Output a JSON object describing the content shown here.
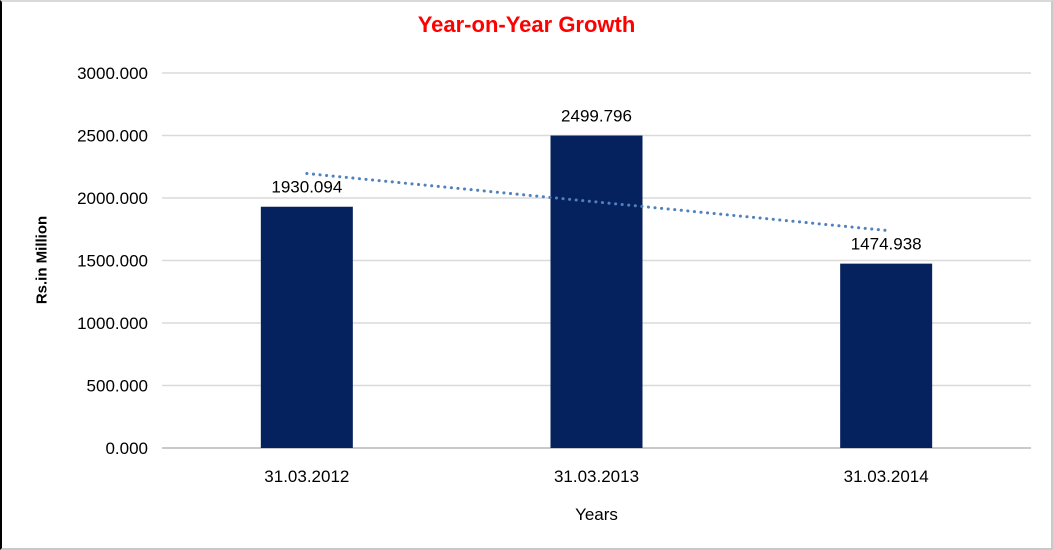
{
  "chart_data": {
    "type": "bar",
    "title": "Year-on-Year Growth",
    "title_color": "#FF0000",
    "categories": [
      "31.03.2012",
      "31.03.2013",
      "31.03.2014"
    ],
    "values": [
      1930.094,
      2499.796,
      1474.938
    ],
    "data_labels": [
      "1930.094",
      "2499.796",
      "1474.938"
    ],
    "xlabel": "Years",
    "ylabel": "Rs.in Million",
    "ylim": [
      0,
      3000
    ],
    "yticks": [
      0,
      500,
      1000,
      1500,
      2000,
      2500,
      3000
    ],
    "ytick_labels": [
      "0.000",
      "500.000",
      "1000.000",
      "1500.000",
      "2000.000",
      "2500.000",
      "3000.000"
    ],
    "grid": true,
    "legend": false,
    "bar_color": "#05215E",
    "gridline_color": "#DADADA",
    "baseline_color": "#C9C9C9",
    "text_color": "#000000",
    "trendline": {
      "type": "linear",
      "style": "dotted",
      "color": "#4F81BD"
    }
  }
}
